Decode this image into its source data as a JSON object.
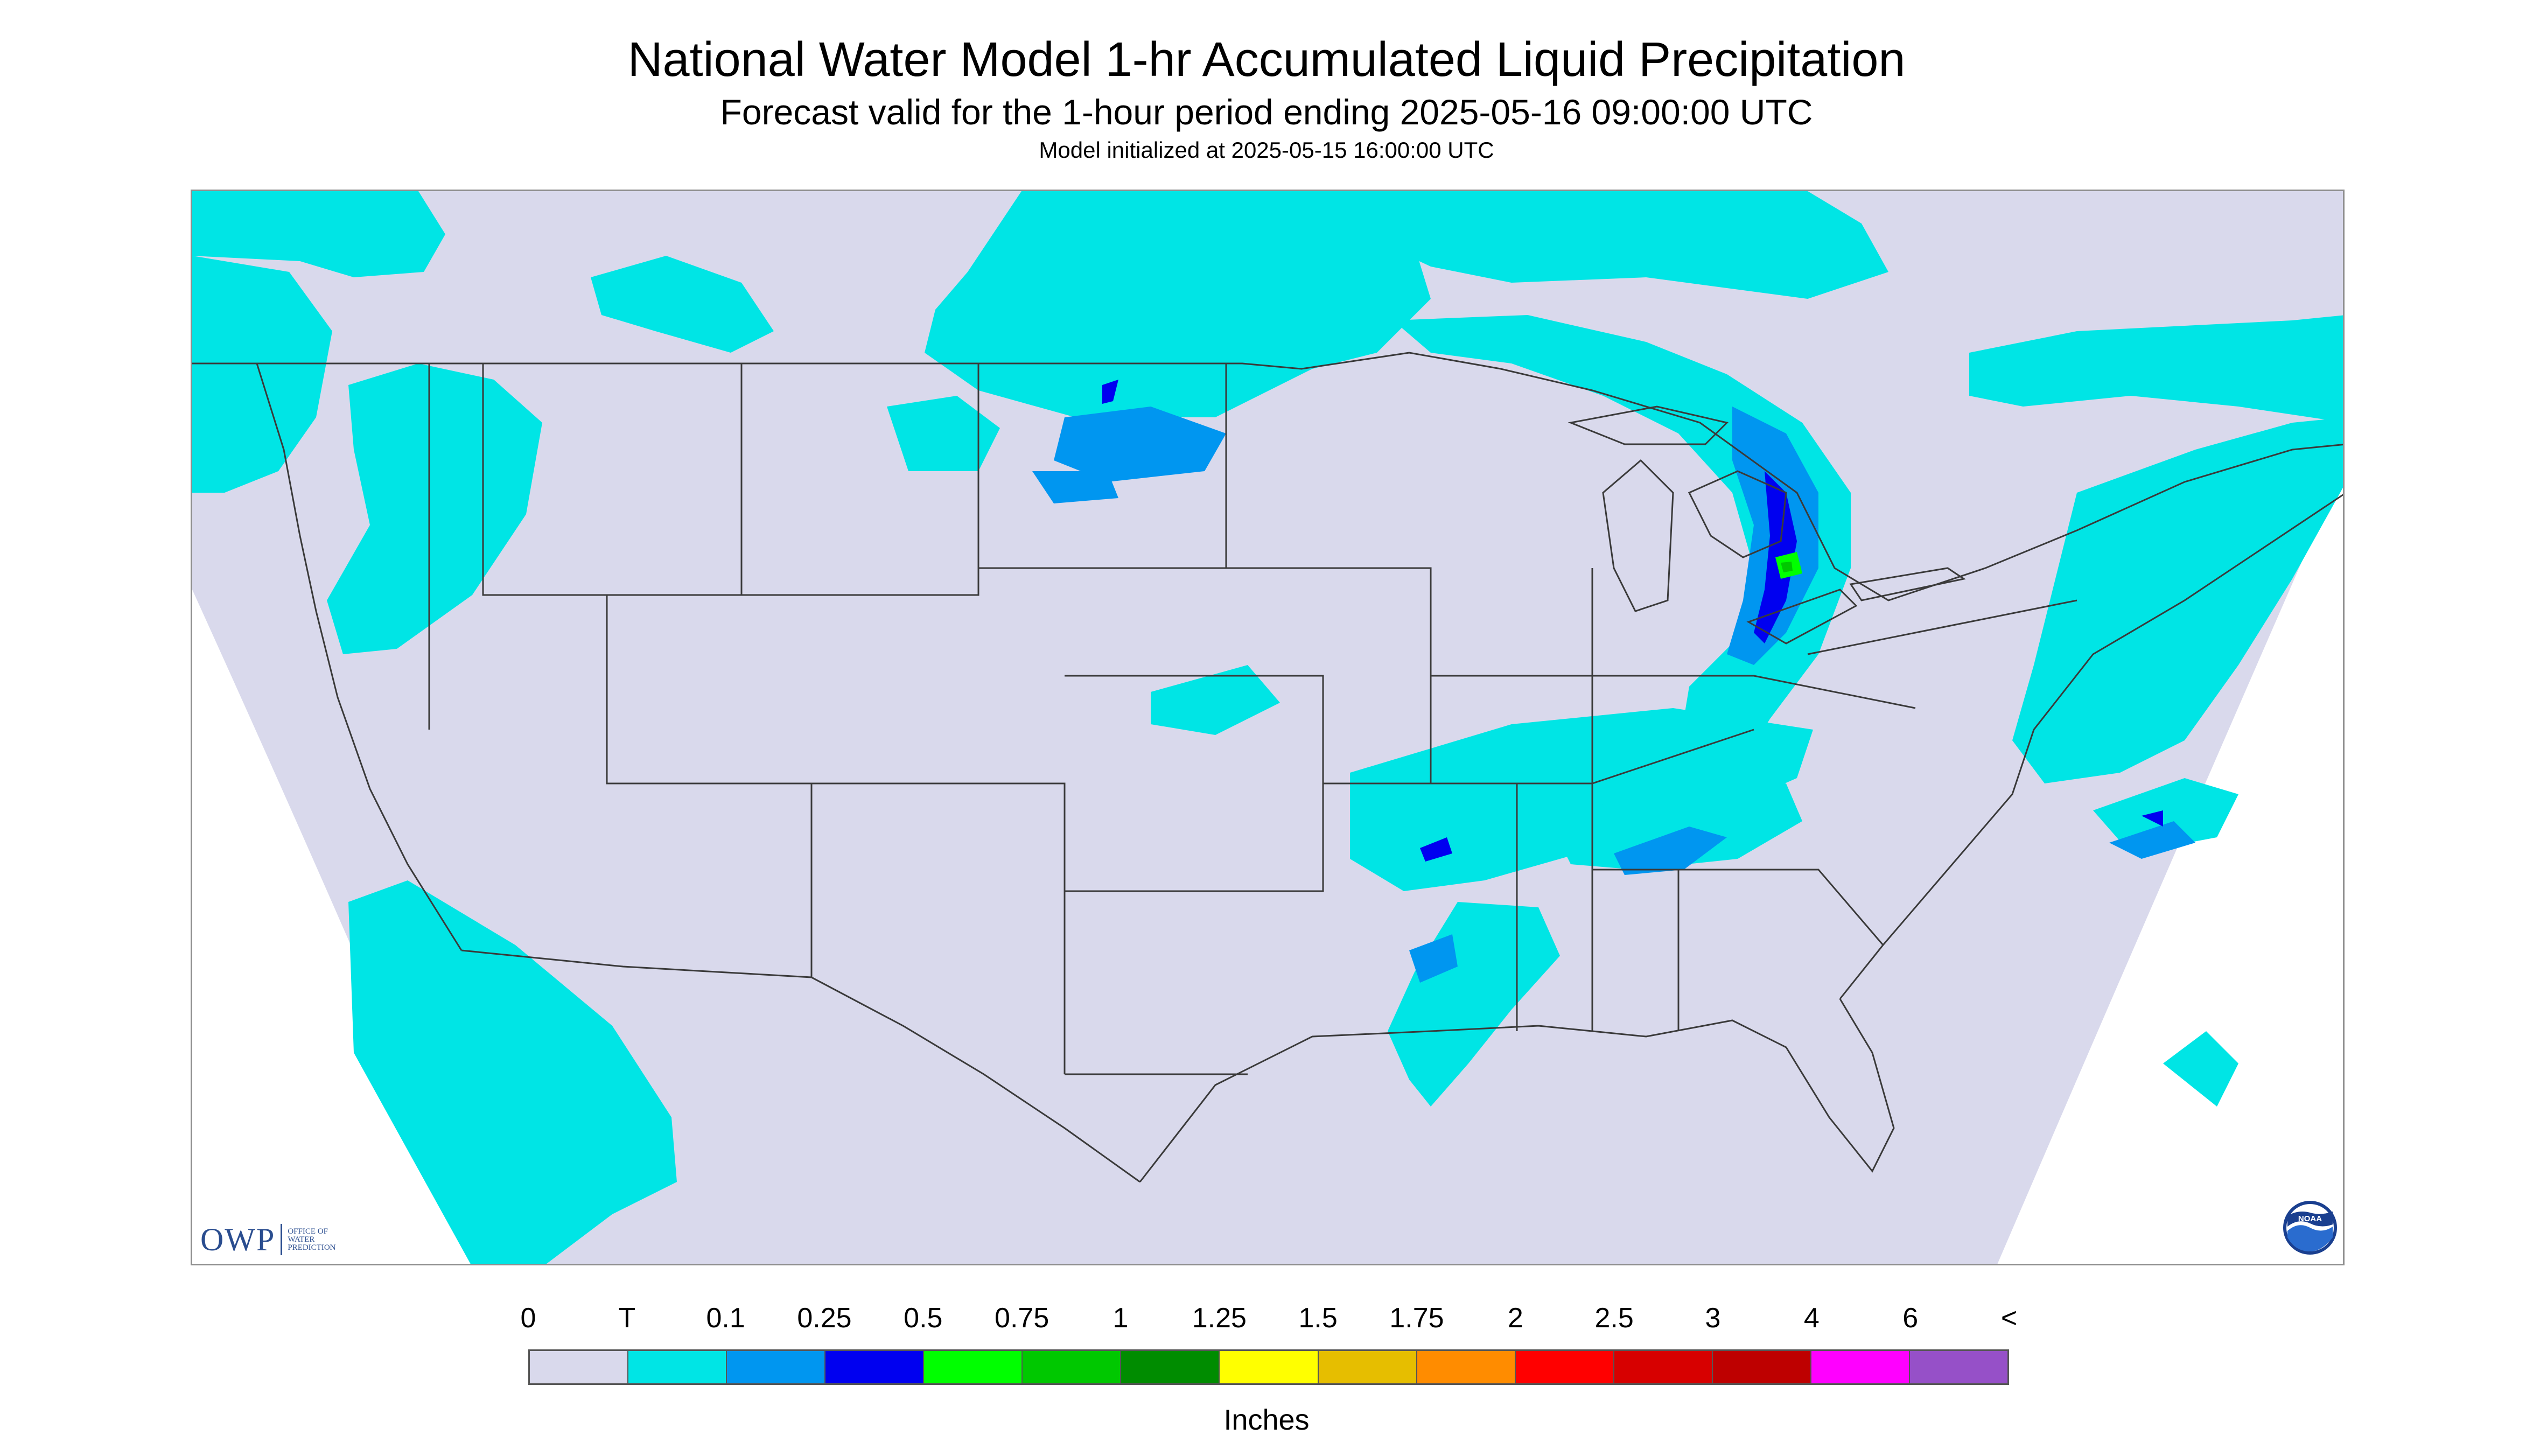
{
  "header": {
    "title": "National Water Model 1-hr Accumulated Liquid Precipitation",
    "subtitle": "Forecast valid for the 1-hour period ending 2025-05-16 09:00:00 UTC",
    "init": "Model initialized at 2025-05-15 16:00:00 UTC"
  },
  "map": {
    "background_color": "#d9d9ec",
    "no_data_color": "#ffffff",
    "boundary_color": "#3a3a3a"
  },
  "logos": {
    "owp_mark": "OWP",
    "owp_line1": "OFFICE OF",
    "owp_line2": "WATER",
    "owp_line3": "PREDICTION",
    "noaa_text": "NOAA"
  },
  "legend": {
    "labels": [
      "0",
      "T",
      "0.1",
      "0.25",
      "0.5",
      "0.75",
      "1",
      "1.25",
      "1.5",
      "1.75",
      "2",
      "2.5",
      "3",
      "4",
      "6",
      "<"
    ],
    "colors": [
      "#d9d9ec",
      "#00e5e5",
      "#0096f0",
      "#0000f0",
      "#00ff00",
      "#00c800",
      "#008c00",
      "#ffff00",
      "#e6be00",
      "#ff8c00",
      "#ff0000",
      "#d70000",
      "#be0000",
      "#ff00ff",
      "#9650c8"
    ],
    "units": "Inches"
  }
}
